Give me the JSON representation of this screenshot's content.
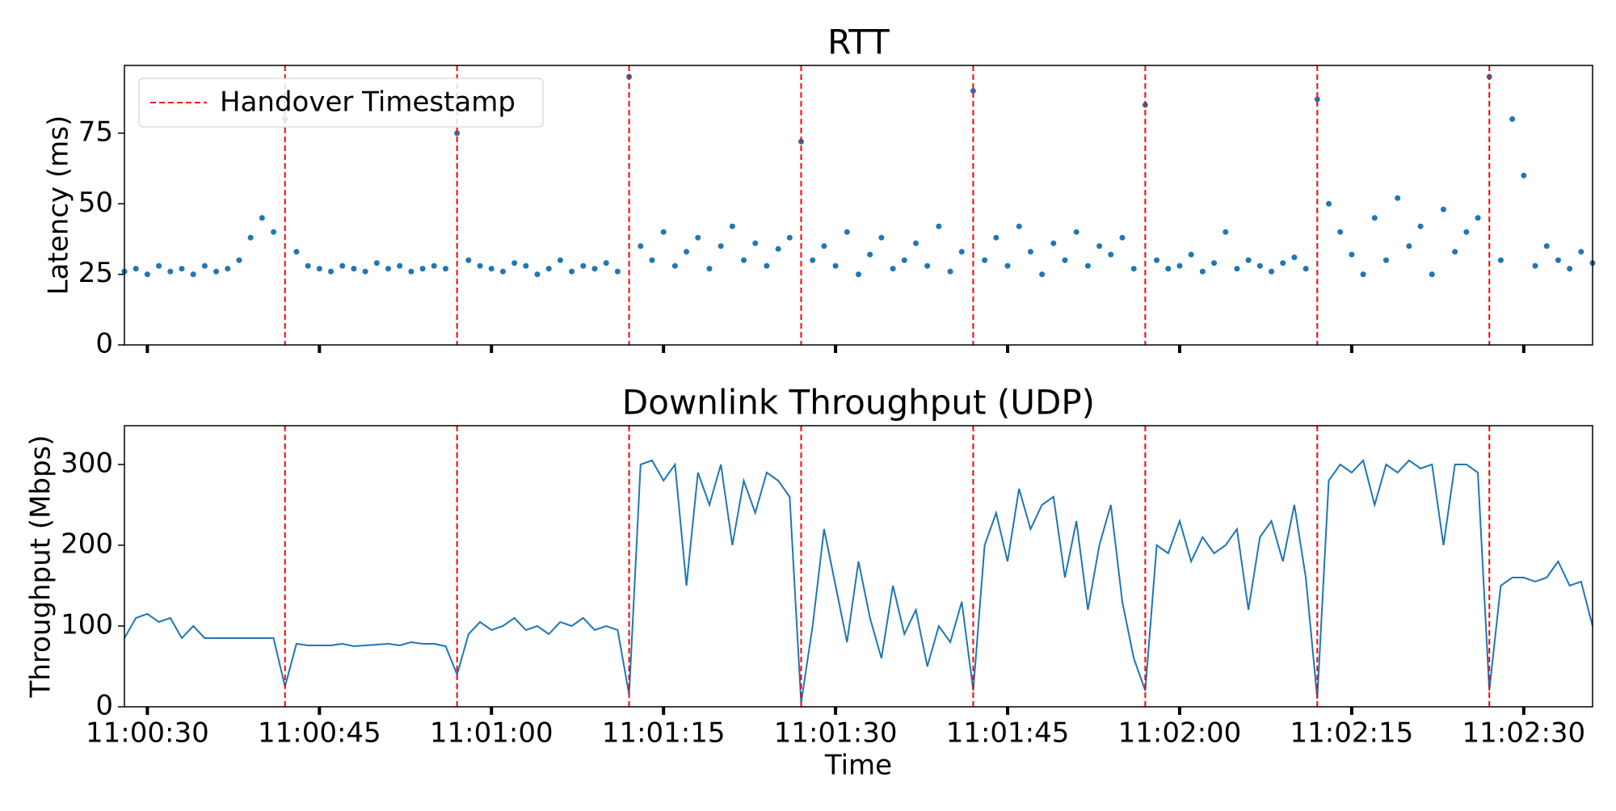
{
  "chart_data": [
    {
      "type": "scatter",
      "title": "RTT",
      "ylabel": "Latency (ms)",
      "color": "#1f77b4",
      "x": [
        "11:00:28",
        "11:00:29",
        "11:00:30",
        "11:00:31",
        "11:00:32",
        "11:00:33",
        "11:00:34",
        "11:00:35",
        "11:00:36",
        "11:00:37",
        "11:00:38",
        "11:00:39",
        "11:00:40",
        "11:00:41",
        "11:00:42",
        "11:00:43",
        "11:00:44",
        "11:00:45",
        "11:00:46",
        "11:00:47",
        "11:00:48",
        "11:00:49",
        "11:00:50",
        "11:00:51",
        "11:00:52",
        "11:00:53",
        "11:00:54",
        "11:00:55",
        "11:00:56",
        "11:00:57",
        "11:00:58",
        "11:00:59",
        "11:01:00",
        "11:01:01",
        "11:01:02",
        "11:01:03",
        "11:01:04",
        "11:01:05",
        "11:01:06",
        "11:01:07",
        "11:01:08",
        "11:01:09",
        "11:01:10",
        "11:01:11",
        "11:01:12",
        "11:01:13",
        "11:01:14",
        "11:01:15",
        "11:01:16",
        "11:01:17",
        "11:01:18",
        "11:01:19",
        "11:01:20",
        "11:01:21",
        "11:01:22",
        "11:01:23",
        "11:01:24",
        "11:01:25",
        "11:01:26",
        "11:01:27",
        "11:01:28",
        "11:01:29",
        "11:01:30",
        "11:01:31",
        "11:01:32",
        "11:01:33",
        "11:01:34",
        "11:01:35",
        "11:01:36",
        "11:01:37",
        "11:01:38",
        "11:01:39",
        "11:01:40",
        "11:01:41",
        "11:01:42",
        "11:01:43",
        "11:01:44",
        "11:01:45",
        "11:01:46",
        "11:01:47",
        "11:01:48",
        "11:01:49",
        "11:01:50",
        "11:01:51",
        "11:01:52",
        "11:01:53",
        "11:01:54",
        "11:01:55",
        "11:01:56",
        "11:01:57",
        "11:01:58",
        "11:01:59",
        "11:02:00",
        "11:02:01",
        "11:02:02",
        "11:02:03",
        "11:02:04",
        "11:02:05",
        "11:02:06",
        "11:02:07",
        "11:02:08",
        "11:02:09",
        "11:02:10",
        "11:02:11",
        "11:02:12",
        "11:02:13",
        "11:02:14",
        "11:02:15",
        "11:02:16",
        "11:02:17",
        "11:02:18",
        "11:02:19",
        "11:02:20",
        "11:02:21",
        "11:02:22",
        "11:02:23",
        "11:02:24",
        "11:02:25",
        "11:02:26",
        "11:02:27",
        "11:02:28",
        "11:02:29",
        "11:02:30",
        "11:02:31",
        "11:02:32",
        "11:02:33",
        "11:02:34",
        "11:02:35",
        "11:02:36"
      ],
      "values": [
        26,
        27,
        25,
        28,
        26,
        27,
        25,
        28,
        26,
        27,
        30,
        38,
        45,
        40,
        80,
        33,
        28,
        27,
        26,
        28,
        27,
        26,
        29,
        27,
        28,
        26,
        27,
        28,
        27,
        75,
        30,
        28,
        27,
        26,
        29,
        28,
        25,
        27,
        30,
        26,
        28,
        27,
        29,
        26,
        95,
        35,
        30,
        40,
        28,
        33,
        38,
        27,
        35,
        42,
        30,
        36,
        28,
        34,
        38,
        72,
        30,
        35,
        28,
        40,
        25,
        32,
        38,
        27,
        30,
        36,
        28,
        42,
        26,
        33,
        90,
        30,
        38,
        28,
        42,
        33,
        25,
        36,
        30,
        40,
        28,
        35,
        32,
        38,
        27,
        85,
        30,
        27,
        28,
        32,
        26,
        29,
        40,
        27,
        30,
        28,
        26,
        29,
        31,
        27,
        87,
        50,
        40,
        32,
        25,
        45,
        30,
        52,
        35,
        42,
        25,
        48,
        33,
        40,
        45,
        95,
        30,
        80,
        60,
        28,
        35,
        30,
        27,
        33,
        29
      ],
      "xlim": [
        "11:00:28",
        "11:02:36"
      ],
      "xticks": [
        "11:00:30",
        "11:00:45",
        "11:01:00",
        "11:01:15",
        "11:01:30",
        "11:01:45",
        "11:02:00",
        "11:02:15",
        "11:02:30"
      ],
      "ylim": [
        0,
        99
      ],
      "yticks": [
        0,
        25,
        50,
        75
      ],
      "handovers": {
        "name": "Handover Timestamp",
        "color": "#ff0000",
        "x": [
          "11:00:42",
          "11:00:57",
          "11:01:12",
          "11:01:27",
          "11:01:42",
          "11:01:57",
          "11:02:12",
          "11:02:27"
        ]
      },
      "legend": "upper left"
    },
    {
      "type": "line",
      "title": "Downlink Throughput (UDP)",
      "ylabel": "Throughput (Mbps)",
      "xlabel": "Time",
      "color": "#1f77b4",
      "x": [
        "11:00:28",
        "11:00:29",
        "11:00:30",
        "11:00:31",
        "11:00:32",
        "11:00:33",
        "11:00:34",
        "11:00:35",
        "11:00:36",
        "11:00:37",
        "11:00:38",
        "11:00:39",
        "11:00:40",
        "11:00:41",
        "11:00:42",
        "11:00:43",
        "11:00:44",
        "11:00:45",
        "11:00:46",
        "11:00:47",
        "11:00:48",
        "11:00:49",
        "11:00:50",
        "11:00:51",
        "11:00:52",
        "11:00:53",
        "11:00:54",
        "11:00:55",
        "11:00:56",
        "11:00:57",
        "11:00:58",
        "11:00:59",
        "11:01:00",
        "11:01:01",
        "11:01:02",
        "11:01:03",
        "11:01:04",
        "11:01:05",
        "11:01:06",
        "11:01:07",
        "11:01:08",
        "11:01:09",
        "11:01:10",
        "11:01:11",
        "11:01:12",
        "11:01:13",
        "11:01:14",
        "11:01:15",
        "11:01:16",
        "11:01:17",
        "11:01:18",
        "11:01:19",
        "11:01:20",
        "11:01:21",
        "11:01:22",
        "11:01:23",
        "11:01:24",
        "11:01:25",
        "11:01:26",
        "11:01:27",
        "11:01:28",
        "11:01:29",
        "11:01:30",
        "11:01:31",
        "11:01:32",
        "11:01:33",
        "11:01:34",
        "11:01:35",
        "11:01:36",
        "11:01:37",
        "11:01:38",
        "11:01:39",
        "11:01:40",
        "11:01:41",
        "11:01:42",
        "11:01:43",
        "11:01:44",
        "11:01:45",
        "11:01:46",
        "11:01:47",
        "11:01:48",
        "11:01:49",
        "11:01:50",
        "11:01:51",
        "11:01:52",
        "11:01:53",
        "11:01:54",
        "11:01:55",
        "11:01:56",
        "11:01:57",
        "11:01:58",
        "11:01:59",
        "11:02:00",
        "11:02:01",
        "11:02:02",
        "11:02:03",
        "11:02:04",
        "11:02:05",
        "11:02:06",
        "11:02:07",
        "11:02:08",
        "11:02:09",
        "11:02:10",
        "11:02:11",
        "11:02:12",
        "11:02:13",
        "11:02:14",
        "11:02:15",
        "11:02:16",
        "11:02:17",
        "11:02:18",
        "11:02:19",
        "11:02:20",
        "11:02:21",
        "11:02:22",
        "11:02:23",
        "11:02:24",
        "11:02:25",
        "11:02:26",
        "11:02:27",
        "11:02:28",
        "11:02:29",
        "11:02:30",
        "11:02:31",
        "11:02:32",
        "11:02:33",
        "11:02:34",
        "11:02:35",
        "11:02:36"
      ],
      "values": [
        85,
        110,
        115,
        105,
        110,
        85,
        100,
        85,
        85,
        85,
        85,
        85,
        85,
        85,
        25,
        78,
        76,
        76,
        76,
        78,
        75,
        76,
        77,
        78,
        76,
        80,
        78,
        78,
        75,
        40,
        90,
        105,
        95,
        100,
        110,
        95,
        100,
        90,
        105,
        100,
        110,
        95,
        100,
        95,
        15,
        300,
        305,
        280,
        300,
        150,
        290,
        250,
        300,
        200,
        280,
        240,
        290,
        280,
        260,
        5,
        100,
        220,
        150,
        80,
        180,
        110,
        60,
        150,
        90,
        120,
        50,
        100,
        80,
        130,
        20,
        200,
        240,
        180,
        270,
        220,
        250,
        260,
        160,
        230,
        120,
        200,
        250,
        130,
        60,
        20,
        200,
        190,
        230,
        180,
        210,
        190,
        200,
        220,
        120,
        210,
        230,
        180,
        250,
        160,
        10,
        280,
        300,
        290,
        305,
        250,
        300,
        290,
        305,
        295,
        300,
        200,
        300,
        300,
        290,
        20,
        150,
        160,
        160,
        155,
        160,
        180,
        150,
        155,
        100
      ],
      "xlim": [
        "11:00:28",
        "11:02:36"
      ],
      "xticks": [
        "11:00:30",
        "11:00:45",
        "11:01:00",
        "11:01:15",
        "11:01:30",
        "11:01:45",
        "11:02:00",
        "11:02:15",
        "11:02:30"
      ],
      "ylim": [
        0,
        348
      ],
      "yticks": [
        0,
        100,
        200,
        300
      ],
      "handovers": {
        "color": "#ff0000",
        "x": [
          "11:00:42",
          "11:00:57",
          "11:01:12",
          "11:01:27",
          "11:01:42",
          "11:01:57",
          "11:02:12",
          "11:02:27"
        ]
      }
    }
  ]
}
